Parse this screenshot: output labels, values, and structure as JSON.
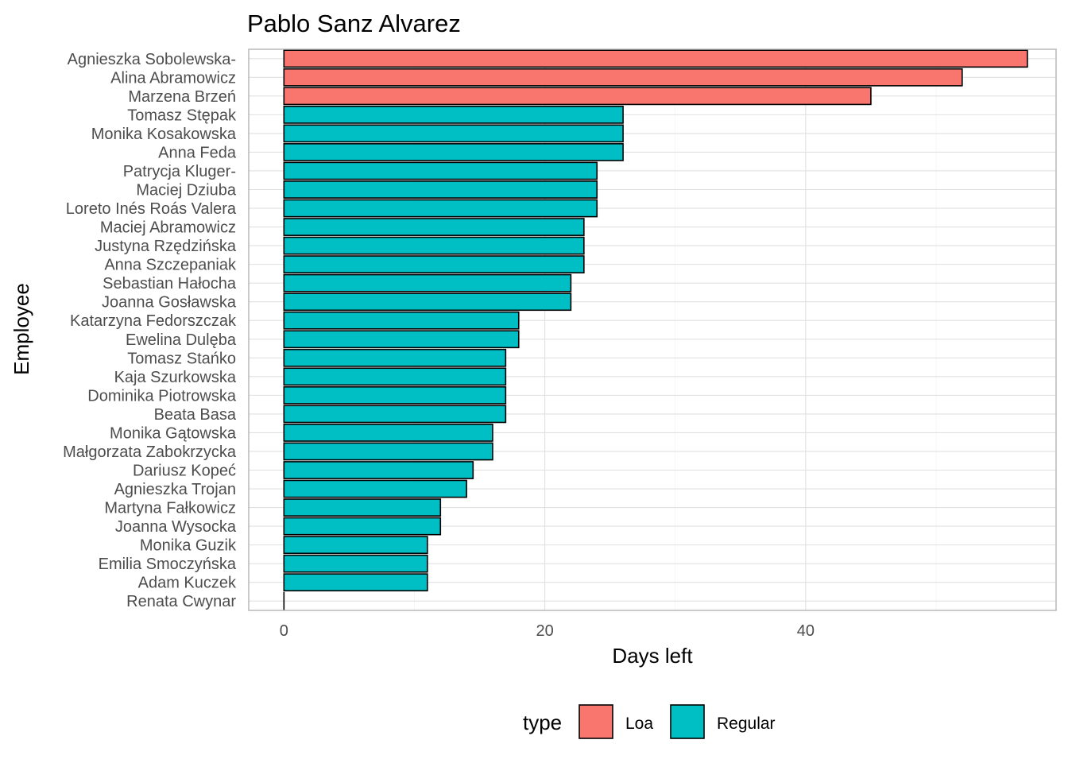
{
  "chart_data": {
    "type": "bar",
    "orientation": "horizontal",
    "title": "Pablo Sanz Alvarez",
    "xlabel": "Days left",
    "ylabel": "Employee",
    "xlim": [
      -2.7,
      59.2
    ],
    "x_ticks": [
      0,
      20,
      40
    ],
    "x_minor_ticks": [
      10,
      30,
      50
    ],
    "grid": true,
    "legend": {
      "title": "type",
      "position": "bottom",
      "entries": [
        {
          "label": "Loa",
          "color": "#F8766D"
        },
        {
          "label": "Regular",
          "color": "#00BFC4"
        }
      ]
    },
    "bars": [
      {
        "employee": "Agnieszka Sobolewska-",
        "days": 57,
        "type": "Loa"
      },
      {
        "employee": "Alina Abramowicz",
        "days": 52,
        "type": "Loa"
      },
      {
        "employee": "Marzena Brzeń",
        "days": 45,
        "type": "Loa"
      },
      {
        "employee": "Tomasz Stępak",
        "days": 26,
        "type": "Regular"
      },
      {
        "employee": "Monika Kosakowska",
        "days": 26,
        "type": "Regular"
      },
      {
        "employee": "Anna Feda",
        "days": 26,
        "type": "Regular"
      },
      {
        "employee": "Patrycja Kluger-",
        "days": 24,
        "type": "Regular"
      },
      {
        "employee": "Maciej Dziuba",
        "days": 24,
        "type": "Regular"
      },
      {
        "employee": "Loreto Inés Roás Valera",
        "days": 24,
        "type": "Regular"
      },
      {
        "employee": "Maciej Abramowicz",
        "days": 23,
        "type": "Regular"
      },
      {
        "employee": "Justyna Rzędzińska",
        "days": 23,
        "type": "Regular"
      },
      {
        "employee": "Anna Szczepaniak",
        "days": 23,
        "type": "Regular"
      },
      {
        "employee": "Sebastian Hałocha",
        "days": 22,
        "type": "Regular"
      },
      {
        "employee": "Joanna Gosławska",
        "days": 22,
        "type": "Regular"
      },
      {
        "employee": "Katarzyna Fedorszczak",
        "days": 18,
        "type": "Regular"
      },
      {
        "employee": "Ewelina Dulęba",
        "days": 18,
        "type": "Regular"
      },
      {
        "employee": "Tomasz Stańko",
        "days": 17,
        "type": "Regular"
      },
      {
        "employee": "Kaja Szurkowska",
        "days": 17,
        "type": "Regular"
      },
      {
        "employee": "Dominika Piotrowska",
        "days": 17,
        "type": "Regular"
      },
      {
        "employee": "Beata Basa",
        "days": 17,
        "type": "Regular"
      },
      {
        "employee": "Monika Gątowska",
        "days": 16,
        "type": "Regular"
      },
      {
        "employee": "Małgorzata Zabokrzycka",
        "days": 16,
        "type": "Regular"
      },
      {
        "employee": "Dariusz Kopeć",
        "days": 14.5,
        "type": "Regular"
      },
      {
        "employee": "Agnieszka Trojan",
        "days": 14,
        "type": "Regular"
      },
      {
        "employee": "Martyna Fałkowicz",
        "days": 12,
        "type": "Regular"
      },
      {
        "employee": "Joanna Wysocka",
        "days": 12,
        "type": "Regular"
      },
      {
        "employee": "Monika Guzik",
        "days": 11,
        "type": "Regular"
      },
      {
        "employee": "Emilia Smoczyńska",
        "days": 11,
        "type": "Regular"
      },
      {
        "employee": "Adam Kuczek",
        "days": 11,
        "type": "Regular"
      },
      {
        "employee": "Renata Cwynar",
        "days": 0,
        "type": "Regular"
      }
    ]
  }
}
